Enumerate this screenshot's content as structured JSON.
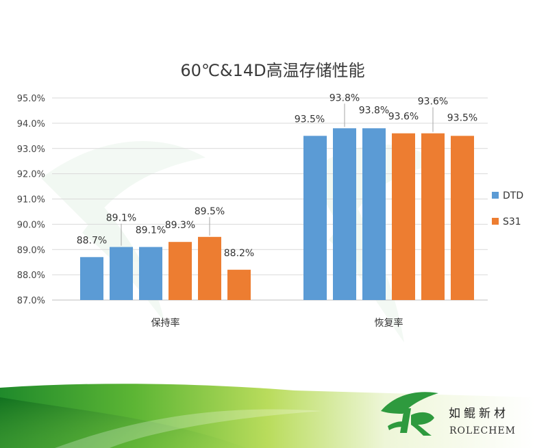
{
  "chart_data": {
    "type": "bar",
    "title": "60℃&14D高温存储性能",
    "categories": [
      "保持率",
      "恢复率"
    ],
    "series": [
      {
        "name": "DTD",
        "color": "#5B9BD5",
        "values": [
          [
            88.7,
            89.1,
            89.1
          ],
          [
            93.5,
            93.8,
            93.8
          ]
        ]
      },
      {
        "name": "S31",
        "color": "#ED7D31",
        "values": [
          [
            89.3,
            89.5,
            88.2
          ],
          [
            93.6,
            93.6,
            93.5
          ]
        ]
      }
    ],
    "value_suffix": "%",
    "ylim": [
      87.0,
      95.0
    ],
    "yticks": [
      "87.0%",
      "88.0%",
      "89.0%",
      "90.0%",
      "91.0%",
      "92.0%",
      "93.0%",
      "94.0%",
      "95.0%"
    ],
    "grid": true,
    "legend_position": "right"
  },
  "brand": {
    "name_cn": "如鲲新材",
    "name_en": "ROLECHEM",
    "green": "#2E9A3E"
  }
}
